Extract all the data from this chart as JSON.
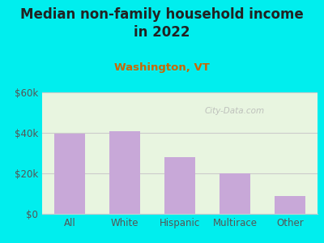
{
  "title_line1": "Median non-family household income",
  "title_line2": "in 2022",
  "subtitle": "Washington, VT",
  "categories": [
    "All",
    "White",
    "Hispanic",
    "Multirace",
    "Other"
  ],
  "values": [
    39500,
    41000,
    28000,
    20000,
    9000
  ],
  "bar_color": "#c8a8d8",
  "title_fontsize": 12,
  "subtitle_fontsize": 9.5,
  "subtitle_color": "#cc6600",
  "title_color": "#222222",
  "tick_label_color": "#555555",
  "background_outer": "#00eeee",
  "background_inner": "#e8f5e0",
  "ylim": [
    0,
    60000
  ],
  "yticks": [
    0,
    20000,
    40000,
    60000
  ],
  "ytick_labels": [
    "$0",
    "$20k",
    "$40k",
    "$60k"
  ],
  "watermark": "City-Data.com",
  "grid_color": "#cccccc"
}
